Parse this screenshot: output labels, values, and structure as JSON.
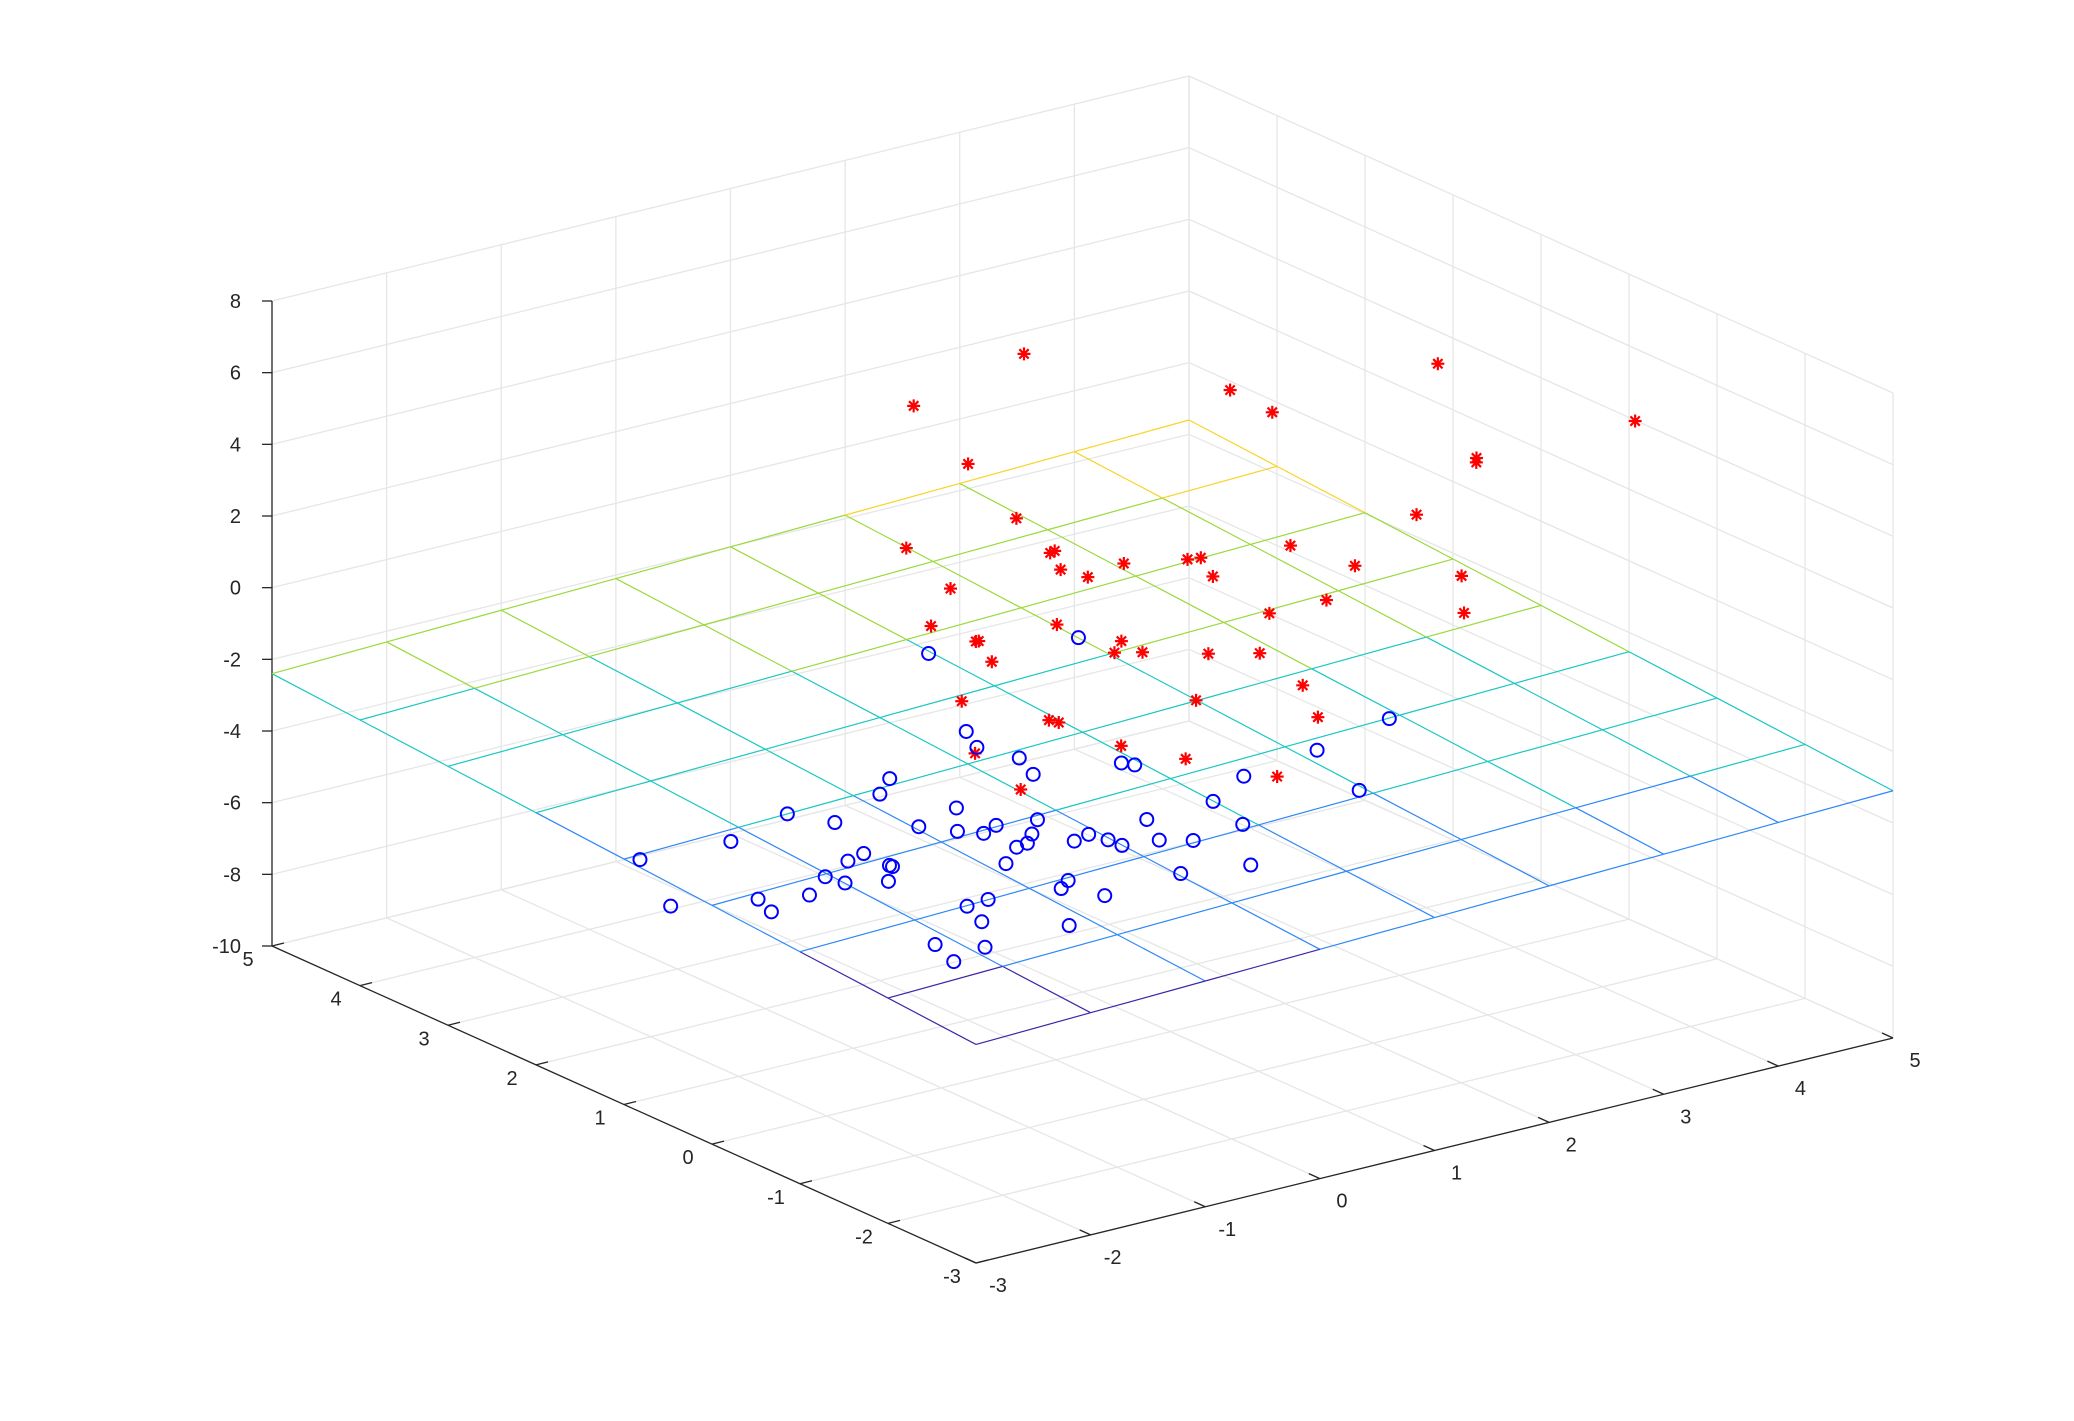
{
  "chart_data": {
    "type": "scatter",
    "title": "",
    "xlabel": "",
    "ylabel": "",
    "zlabel": "",
    "xlim": [
      -3,
      5
    ],
    "ylim": [
      -3,
      5
    ],
    "zlim": [
      -10,
      8
    ],
    "x_ticks": [
      "-3",
      "-2",
      "-1",
      "0",
      "1",
      "2",
      "3",
      "4",
      "5"
    ],
    "y_ticks": [
      "-3",
      "-2",
      "-1",
      "0",
      "1",
      "2",
      "3",
      "4",
      "5"
    ],
    "z_ticks": [
      "-10",
      "-8",
      "-6",
      "-4",
      "-2",
      "0",
      "2",
      "4",
      "6",
      "8"
    ],
    "grid": true,
    "view": "3d",
    "colors": {
      "positive": "#ff0000",
      "negative": "#0000ff",
      "plane_colormap": [
        "#3e26a8",
        "#2e87f7",
        "#1ac7c2",
        "#9bd93c",
        "#f9d325"
      ]
    },
    "plane": {
      "type": "surface-mesh",
      "z_at_corners": {
        "x-3_y-3": -3.9,
        "x5_y-3": -3.1,
        "x-3_y5": -2.4,
        "x5_y5": -1.6
      }
    },
    "series": [
      {
        "marker": "star",
        "color": "#ff0000",
        "points": [
          [
            3.1,
            4.4,
            2.4
          ],
          [
            4.1,
            1.0,
            5.1
          ],
          [
            2.9,
            -1.0,
            5.5
          ],
          [
            4.9,
            -0.2,
            4.2
          ],
          [
            3.5,
            2.1,
            3.0
          ],
          [
            3.9,
            0.3,
            3.4
          ],
          [
            3.3,
            0.2,
            2.4
          ],
          [
            3.9,
            3.1,
            2.2
          ],
          [
            1.6,
            3.7,
            2.9
          ],
          [
            1.0,
            2.3,
            3.3
          ],
          [
            0.5,
            1.1,
            3.5
          ],
          [
            0.0,
            1.7,
            2.4
          ],
          [
            0.9,
            0.4,
            2.7
          ],
          [
            1.6,
            0.3,
            1.9
          ],
          [
            2.2,
            0.2,
            2.4
          ],
          [
            1.9,
            -0.6,
            2.0
          ],
          [
            1.2,
            1.2,
            1.2
          ],
          [
            0.7,
            0.9,
            0.6
          ],
          [
            1.5,
            1.9,
            0.4
          ],
          [
            2.3,
            1.5,
            0.5
          ],
          [
            2.4,
            0.7,
            -0.2
          ],
          [
            1.1,
            -0.3,
            0.8
          ],
          [
            0.3,
            1.3,
            0.0
          ],
          [
            1.0,
            2.5,
            -0.4
          ],
          [
            3.3,
            0.9,
            0.2
          ],
          [
            2.8,
            2.0,
            -0.4
          ],
          [
            3.1,
            -0.6,
            0.7
          ],
          [
            4.0,
            0.6,
            -0.3
          ],
          [
            2.1,
            2.8,
            -0.6
          ],
          [
            0.6,
            2.2,
            -0.8
          ],
          [
            1.6,
            1.1,
            -1.1
          ],
          [
            2.6,
            3.4,
            -1.6
          ],
          [
            0.1,
            1.2,
            -1.4
          ],
          [
            1.3,
            0.1,
            -1.1
          ],
          [
            2.0,
            -0.2,
            -0.9
          ],
          [
            1.8,
            1.6,
            -1.5
          ],
          [
            0.9,
            1.9,
            -1.7
          ],
          [
            0.4,
            0.6,
            -1.5
          ],
          [
            2.7,
            1.2,
            -2.1
          ],
          [
            1.4,
            2.7,
            -2.4
          ],
          [
            0.8,
            0.3,
            -2.2
          ],
          [
            2.2,
            2.2,
            -2.8
          ],
          [
            1.1,
            1.4,
            -3.0
          ],
          [
            0.0,
            0.4,
            -2.9
          ],
          [
            1.7,
            -0.3,
            -3.1
          ],
          [
            2.9,
            0.8,
            -3.6
          ],
          [
            0.6,
            1.7,
            -3.8
          ],
          [
            1.9,
            1.0,
            -4.2
          ]
        ]
      },
      {
        "marker": "circle",
        "color": "#0000ff",
        "points": [
          [
            -2.5,
            -1.4,
            -1.1
          ],
          [
            -1.8,
            -2.9,
            -0.8
          ],
          [
            -1.4,
            -1.5,
            -1.2
          ],
          [
            -2.3,
            -0.6,
            -2.6
          ],
          [
            -1.6,
            0.1,
            -3.1
          ],
          [
            -2.9,
            0.6,
            -4.1
          ],
          [
            -0.9,
            -0.9,
            -2.0
          ],
          [
            -2.0,
            -1.8,
            -3.3
          ],
          [
            -0.6,
            -2.2,
            -1.9
          ],
          [
            -1.2,
            0.8,
            -4.4
          ],
          [
            -2.4,
            1.6,
            -4.3
          ],
          [
            -0.3,
            -0.6,
            -3.0
          ],
          [
            0.2,
            -1.3,
            -2.6
          ],
          [
            0.6,
            1.8,
            -3.3
          ],
          [
            1.5,
            3.4,
            -3.6
          ],
          [
            2.5,
            3.0,
            -3.5
          ],
          [
            -0.4,
            0.3,
            -3.7
          ],
          [
            -0.1,
            1.0,
            -4.0
          ],
          [
            0.3,
            0.6,
            -4.2
          ],
          [
            0.8,
            1.3,
            -4.1
          ],
          [
            -0.7,
            1.6,
            -4.6
          ],
          [
            0.0,
            2.0,
            -4.8
          ],
          [
            0.5,
            -0.1,
            -4.3
          ],
          [
            1.1,
            0.4,
            -4.6
          ],
          [
            -0.2,
            -0.4,
            -4.4
          ],
          [
            -1.0,
            0.6,
            -4.9
          ],
          [
            0.4,
            1.2,
            -5.1
          ],
          [
            1.0,
            2.2,
            -4.5
          ],
          [
            -0.5,
            2.4,
            -5.4
          ],
          [
            -1.3,
            2.0,
            -5.1
          ],
          [
            0.9,
            0.8,
            -5.3
          ],
          [
            1.8,
            1.6,
            -4.9
          ],
          [
            1.4,
            -0.3,
            -4.2
          ],
          [
            2.1,
            0.6,
            -4.4
          ],
          [
            -0.8,
            -0.2,
            -5.3
          ],
          [
            0.2,
            0.2,
            -5.6
          ],
          [
            0.7,
            2.8,
            -5.8
          ],
          [
            1.6,
            2.5,
            -5.6
          ],
          [
            -1.6,
            1.3,
            -5.7
          ],
          [
            -0.3,
            1.5,
            -6.0
          ],
          [
            0.6,
            1.9,
            -6.2
          ],
          [
            1.3,
            1.1,
            -6.1
          ],
          [
            2.3,
            2.1,
            -5.9
          ],
          [
            -0.9,
            0.2,
            -6.3
          ],
          [
            0.1,
            0.9,
            -6.6
          ],
          [
            1.7,
            0.0,
            -5.9
          ],
          [
            -0.4,
            2.1,
            -6.9
          ],
          [
            0.8,
            2.6,
            -7.0
          ],
          [
            1.9,
            1.3,
            -6.8
          ],
          [
            0.3,
            1.4,
            -7.5
          ],
          [
            1.1,
            2.0,
            -7.6
          ],
          [
            -1.1,
            1.8,
            -7.0
          ],
          [
            2.6,
            1.6,
            -6.6
          ],
          [
            0.5,
            0.5,
            -7.2
          ],
          [
            -0.2,
            0.9,
            -8.1
          ],
          [
            1.5,
            2.4,
            -7.9
          ],
          [
            0.0,
            2.8,
            -8.5
          ],
          [
            3.2,
            1.2,
            -5.2
          ],
          [
            2.8,
            0.2,
            -4.9
          ],
          [
            3.6,
            0.9,
            -4.3
          ]
        ]
      }
    ]
  }
}
